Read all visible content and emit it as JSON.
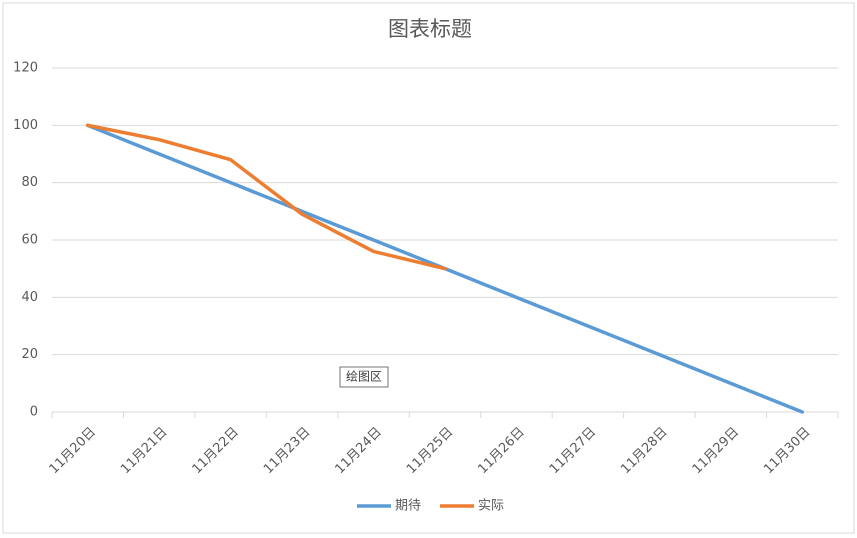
{
  "chart_data": {
    "type": "line",
    "title": "图表标题",
    "categories": [
      "11月20日",
      "11月21日",
      "11月22日",
      "11月23日",
      "11月24日",
      "11月25日",
      "11月26日",
      "11月27日",
      "11月28日",
      "11月29日",
      "11月30日"
    ],
    "series": [
      {
        "name": "期待",
        "color": "#5b9bd5",
        "values": [
          100,
          90,
          80,
          70,
          60,
          50,
          40,
          30,
          20,
          10,
          0
        ]
      },
      {
        "name": "实际",
        "color": "#ed7d31",
        "values": [
          100,
          95,
          88,
          69,
          56,
          50,
          null,
          null,
          null,
          null,
          null
        ]
      }
    ],
    "ylim": [
      0,
      120
    ],
    "yticks": [
      0,
      20,
      40,
      60,
      80,
      100,
      120
    ],
    "grid": true,
    "legend": "bottom",
    "annotation": "绘图区"
  }
}
